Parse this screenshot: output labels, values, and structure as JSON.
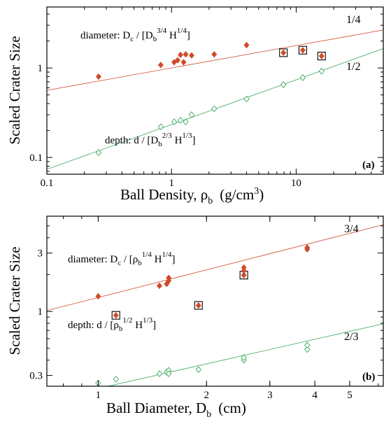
{
  "chart_data": [
    {
      "panel_label": "(a)",
      "type": "scatter",
      "xlabel": "Ball Density, ρ",
      "xlabel_sub": "b",
      "xlabel_unit": "(g/cm",
      "xlabel_unit_sup": "3",
      "xlabel_unit_close": ")",
      "ylabel": "Scaled Crater Size",
      "xscale": "log",
      "yscale": "log",
      "xlim": [
        0.1,
        50
      ],
      "ylim": [
        0.065,
        4.8
      ],
      "xticks": [
        {
          "v": 0.1,
          "label": "0.1"
        },
        {
          "v": 1,
          "label": "1"
        },
        {
          "v": 10,
          "label": "10"
        }
      ],
      "yticks": [
        {
          "v": 0.1,
          "label": "0.1"
        },
        {
          "v": 1,
          "label": "1"
        }
      ],
      "series": [
        {
          "key": "diameter",
          "marker": "filled-diamond",
          "color": "#d04a2a",
          "points": [
            [
              0.26,
              0.8
            ],
            [
              0.82,
              1.08
            ],
            [
              1.05,
              1.16
            ],
            [
              1.12,
              1.22
            ],
            [
              1.18,
              1.4
            ],
            [
              1.25,
              1.16
            ],
            [
              1.3,
              1.42
            ],
            [
              1.45,
              1.38
            ],
            [
              2.2,
              1.42
            ],
            [
              4.0,
              1.8
            ],
            [
              7.9,
              1.48
            ],
            [
              11.3,
              1.58
            ],
            [
              16.0,
              1.36
            ]
          ],
          "boxed": [
            [
              7.9,
              1.48
            ],
            [
              11.3,
              1.58
            ],
            [
              16.0,
              1.36
            ]
          ],
          "fit": {
            "type": "power",
            "coef": 1.0,
            "exponent": 0.25
          }
        },
        {
          "key": "depth",
          "marker": "open-diamond",
          "color": "#3aa85a",
          "points": [
            [
              0.26,
              0.113
            ],
            [
              0.82,
              0.22
            ],
            [
              1.05,
              0.25
            ],
            [
              1.18,
              0.26
            ],
            [
              1.3,
              0.25
            ],
            [
              1.45,
              0.3
            ],
            [
              2.2,
              0.35
            ],
            [
              4.0,
              0.45
            ],
            [
              7.9,
              0.65
            ],
            [
              11.3,
              0.78
            ],
            [
              16.0,
              0.92
            ]
          ],
          "fit": {
            "type": "power",
            "coef": 0.233,
            "exponent": 0.5
          }
        }
      ],
      "annotations": {
        "diameter_prefix": "diameter: D",
        "diameter_c": "c",
        "diameter_mid": " / [D",
        "diameter_b": "b",
        "diameter_exp1": "3/4",
        "diameter_h": " H",
        "diameter_exp2": "1/4",
        "diameter_close": "]",
        "depth_prefix": "depth: d / [D",
        "depth_b": "b",
        "depth_exp1": "2/3",
        "depth_h": " H",
        "depth_exp2": "1/3",
        "depth_close": "]",
        "slope_upper": "1/4",
        "slope_lower": "1/2"
      }
    },
    {
      "panel_label": "(b)",
      "type": "scatter",
      "xlabel": "Ball Diameter, D",
      "xlabel_sub": "b",
      "xlabel_unit": "(cm)",
      "ylabel": "Scaled Crater Size",
      "xscale": "log",
      "yscale": "log",
      "xlim": [
        0.72,
        6.2
      ],
      "ylim": [
        0.245,
        6.0
      ],
      "xticks": [
        {
          "v": 1,
          "label": "1"
        },
        {
          "v": 2,
          "label": "2"
        },
        {
          "v": 3,
          "label": "3"
        },
        {
          "v": 4,
          "label": "4"
        },
        {
          "v": 5,
          "label": "5"
        }
      ],
      "yticks": [
        {
          "v": 0.3,
          "label": "0.3"
        },
        {
          "v": 1,
          "label": "1"
        },
        {
          "v": 3,
          "label": "3"
        }
      ],
      "series": [
        {
          "key": "diameter",
          "marker": "filled-diamond",
          "color": "#d04a2a",
          "points": [
            [
              1.0,
              1.33
            ],
            [
              1.12,
              0.93
            ],
            [
              1.48,
              1.62
            ],
            [
              1.55,
              1.68
            ],
            [
              1.57,
              1.78
            ],
            [
              1.57,
              1.88
            ],
            [
              1.9,
              1.12
            ],
            [
              2.54,
              1.98
            ],
            [
              2.54,
              2.15
            ],
            [
              2.54,
              2.28
            ],
            [
              3.81,
              3.22
            ],
            [
              3.81,
              3.33
            ]
          ],
          "boxed": [
            [
              1.12,
              0.93
            ],
            [
              1.9,
              1.12
            ],
            [
              2.54,
              1.98
            ]
          ],
          "fit": {
            "type": "power",
            "coef": 1.3,
            "exponent": 0.75
          }
        },
        {
          "key": "depth",
          "marker": "open-diamond",
          "color": "#3aa85a",
          "points": [
            [
              1.0,
              0.26
            ],
            [
              1.12,
              0.28
            ],
            [
              1.48,
              0.31
            ],
            [
              1.55,
              0.32
            ],
            [
              1.57,
              0.33
            ],
            [
              1.57,
              0.31
            ],
            [
              1.9,
              0.335
            ],
            [
              2.54,
              0.4
            ],
            [
              2.54,
              0.42
            ],
            [
              3.81,
              0.49
            ],
            [
              3.81,
              0.53
            ]
          ],
          "fit": {
            "type": "power",
            "coef": 0.235,
            "exponent": 0.6667
          }
        }
      ],
      "annotations": {
        "diameter_prefix": "diameter: D",
        "diameter_c": "c",
        "diameter_mid": " / [ρ",
        "diameter_b": "b",
        "diameter_exp1": "1/4",
        "diameter_h": " H",
        "diameter_exp2": "1/4",
        "diameter_close": "]",
        "depth_prefix": "depth: d / [ρ",
        "depth_b": "b",
        "depth_exp1": "1/2",
        "depth_h": " H",
        "depth_exp2": "1/3",
        "depth_close": "]",
        "slope_upper": "3/4",
        "slope_lower": "2/3"
      }
    }
  ]
}
